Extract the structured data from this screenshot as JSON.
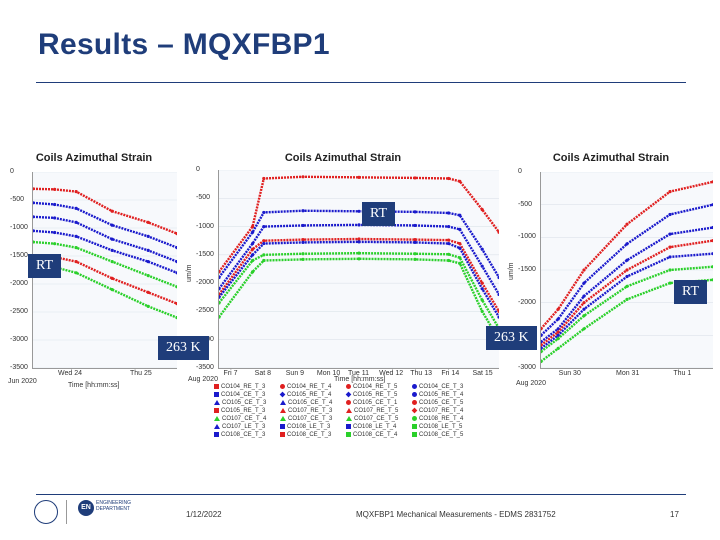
{
  "slide": {
    "title": "Results – MQXFBP1",
    "footer_date": "1/12/2022",
    "footer_center": "MQXFBP1 Mechanical Measurements - EDMS 2831752",
    "page_number": "17",
    "logo_en": "EN",
    "logo_en_text": "ENGINEERING DEPARTMENT"
  },
  "annotations": {
    "rt_center": "RT",
    "rt_left": "RT",
    "rt_right": "RT",
    "k263_left": "263 K",
    "k263_right": "263 K"
  },
  "colors": {
    "red": "#e02020",
    "blue": "#1a1acc",
    "green": "#2ad02a",
    "accent": "#1f3d7a"
  },
  "chart_data": [
    {
      "type": "line",
      "title": "Coils Azimuthal Strain",
      "ylabel": "",
      "ylim": [
        -3500,
        0
      ],
      "yticks": [
        "0",
        "-500",
        "-1000",
        "-1500",
        "-2000",
        "-2500",
        "-3000",
        "-3500"
      ],
      "xticks": [
        "Wed 24",
        "Thu 25"
      ],
      "xlabel": "Time [hh:mm:ss]",
      "date_start": "Jun 2020",
      "x": [
        0,
        0.15,
        0.3,
        0.55,
        0.8,
        1.0
      ],
      "series": [
        {
          "name": "red",
          "color": "red",
          "values": [
            -300,
            -310,
            -350,
            -700,
            -900,
            -1100
          ]
        },
        {
          "name": "blue",
          "color": "blue",
          "values": [
            -550,
            -580,
            -650,
            -950,
            -1150,
            -1350
          ]
        },
        {
          "name": "blue",
          "color": "blue",
          "values": [
            -800,
            -820,
            -900,
            -1200,
            -1400,
            -1600
          ]
        },
        {
          "name": "blue",
          "color": "blue",
          "values": [
            -1050,
            -1080,
            -1150,
            -1400,
            -1600,
            -1800
          ]
        },
        {
          "name": "green",
          "color": "green",
          "values": [
            -1250,
            -1280,
            -1350,
            -1600,
            -1850,
            -2050
          ]
        },
        {
          "name": "red",
          "color": "red",
          "values": [
            -1500,
            -1520,
            -1600,
            -1900,
            -2150,
            -2350
          ]
        },
        {
          "name": "green",
          "color": "green",
          "values": [
            -1650,
            -1700,
            -1800,
            -2100,
            -2400,
            -2600
          ]
        }
      ]
    },
    {
      "type": "line",
      "title": "Coils Azimuthal Strain",
      "ylabel": "um/m",
      "ylim": [
        -3500,
        0
      ],
      "yticks": [
        "0",
        "-500",
        "-1000",
        "-1500",
        "-2000",
        "-2500",
        "-3000",
        "-3500"
      ],
      "xticks": [
        "Fri 7",
        "Sat 8",
        "Sun 9",
        "Mon 10",
        "Tue 11",
        "Wed 12",
        "Thu 13",
        "Fri 14",
        "Sat 15"
      ],
      "xlabel": "Time [hh:mm:ss]",
      "date_start": "Aug 2020",
      "x": [
        0,
        0.12,
        0.16,
        0.3,
        0.5,
        0.7,
        0.82,
        0.86,
        0.94,
        1.0
      ],
      "series": [
        {
          "name": "red",
          "color": "red",
          "values": [
            -1800,
            -1000,
            -150,
            -120,
            -130,
            -140,
            -150,
            -200,
            -700,
            -1100
          ]
        },
        {
          "name": "blue",
          "color": "blue",
          "values": [
            -1900,
            -1100,
            -750,
            -720,
            -730,
            -740,
            -760,
            -800,
            -1400,
            -1900
          ]
        },
        {
          "name": "blue",
          "color": "blue",
          "values": [
            -2100,
            -1300,
            -1000,
            -980,
            -970,
            -980,
            -1000,
            -1050,
            -1700,
            -2200
          ]
        },
        {
          "name": "red",
          "color": "red",
          "values": [
            -2200,
            -1400,
            -1250,
            -1230,
            -1220,
            -1230,
            -1240,
            -1300,
            -2000,
            -2500
          ]
        },
        {
          "name": "green",
          "color": "green",
          "values": [
            -2350,
            -1600,
            -1500,
            -1480,
            -1470,
            -1480,
            -1490,
            -1550,
            -2300,
            -2800
          ]
        },
        {
          "name": "blue",
          "color": "blue",
          "values": [
            -2250,
            -1500,
            -1300,
            -1280,
            -1270,
            -1280,
            -1300,
            -1380,
            -2100,
            -2600
          ]
        },
        {
          "name": "green",
          "color": "green",
          "values": [
            -2600,
            -1800,
            -1600,
            -1580,
            -1570,
            -1580,
            -1600,
            -1650,
            -2500,
            -3000
          ]
        }
      ]
    },
    {
      "type": "line",
      "title": "Coils Azimuthal Strain",
      "ylabel": "um/m",
      "ylim": [
        -3000,
        0
      ],
      "yticks": [
        "0",
        "-500",
        "-1000",
        "-1500",
        "-2000",
        "-2500",
        "-3000"
      ],
      "xticks": [
        "Sun 30",
        "Mon 31",
        "Thu 1"
      ],
      "xlabel": "Time [hh:mm:ss]",
      "date_start": "Aug 2020",
      "x": [
        0,
        0.1,
        0.25,
        0.5,
        0.75,
        1.0
      ],
      "series": [
        {
          "name": "red",
          "color": "red",
          "values": [
            -2400,
            -2100,
            -1500,
            -800,
            -300,
            -150
          ]
        },
        {
          "name": "blue",
          "color": "blue",
          "values": [
            -2500,
            -2250,
            -1700,
            -1100,
            -650,
            -500
          ]
        },
        {
          "name": "blue",
          "color": "blue",
          "values": [
            -2600,
            -2400,
            -1900,
            -1350,
            -950,
            -850
          ]
        },
        {
          "name": "red",
          "color": "red",
          "values": [
            -2650,
            -2450,
            -2000,
            -1500,
            -1150,
            -1050
          ]
        },
        {
          "name": "blue",
          "color": "blue",
          "values": [
            -2700,
            -2500,
            -2100,
            -1600,
            -1300,
            -1250
          ]
        },
        {
          "name": "green",
          "color": "green",
          "values": [
            -2750,
            -2550,
            -2200,
            -1750,
            -1500,
            -1450
          ]
        },
        {
          "name": "green",
          "color": "green",
          "values": [
            -2900,
            -2700,
            -2400,
            -1950,
            -1700,
            -1650
          ]
        }
      ]
    }
  ],
  "legend": [
    {
      "label": "CO104_RE_T_3",
      "color": "red",
      "shape": "square"
    },
    {
      "label": "CO104_RE_T_4",
      "color": "red",
      "shape": "circle"
    },
    {
      "label": "CO104_RE_T_5",
      "color": "red",
      "shape": "circle"
    },
    {
      "label": "CO104_CE_T_3",
      "color": "blue",
      "shape": "circle"
    },
    {
      "label": "CO104_CE_T_3",
      "color": "blue",
      "shape": "square"
    },
    {
      "label": "CO105_RE_T_4",
      "color": "blue",
      "shape": "diamond"
    },
    {
      "label": "CO105_RE_T_5",
      "color": "blue",
      "shape": "diamond"
    },
    {
      "label": "CO105_RE_T_4",
      "color": "blue",
      "shape": "circle"
    },
    {
      "label": "CO105_CE_T_3",
      "color": "blue",
      "shape": "triangle"
    },
    {
      "label": "CO105_CE_T_4",
      "color": "blue",
      "shape": "triangle"
    },
    {
      "label": "CO105_CE_T_1",
      "color": "red",
      "shape": "circle"
    },
    {
      "label": "CO105_CE_T_5",
      "color": "red",
      "shape": "circle"
    },
    {
      "label": "CO105_RE_T_3",
      "color": "red",
      "shape": "square"
    },
    {
      "label": "CO107_RE_T_3",
      "color": "red",
      "shape": "triangle"
    },
    {
      "label": "CO107_RE_T_5",
      "color": "red",
      "shape": "triangle"
    },
    {
      "label": "CO107_RE_T_4",
      "color": "red",
      "shape": "diamond"
    },
    {
      "label": "CO107_CE_T_4",
      "color": "green",
      "shape": "triangle"
    },
    {
      "label": "CO107_CE_T_3",
      "color": "green",
      "shape": "triangle"
    },
    {
      "label": "CO107_CE_T_5",
      "color": "green",
      "shape": "triangle"
    },
    {
      "label": "CO108_RE_T_4",
      "color": "green",
      "shape": "circle"
    },
    {
      "label": "CO107_LE_T_3",
      "color": "blue",
      "shape": "triangle"
    },
    {
      "label": "CO108_LE_T_3",
      "color": "blue",
      "shape": "square"
    },
    {
      "label": "CO108_LE_T_4",
      "color": "blue",
      "shape": "square"
    },
    {
      "label": "CO108_LE_T_5",
      "color": "green",
      "shape": "square"
    },
    {
      "label": "CO108_CE_T_3",
      "color": "blue",
      "shape": "square"
    },
    {
      "label": "CO108_CE_T_3",
      "color": "red",
      "shape": "square"
    },
    {
      "label": "CO108_CE_T_4",
      "color": "green",
      "shape": "square"
    },
    {
      "label": "CO108_CE_T_5",
      "color": "green",
      "shape": "square"
    }
  ]
}
